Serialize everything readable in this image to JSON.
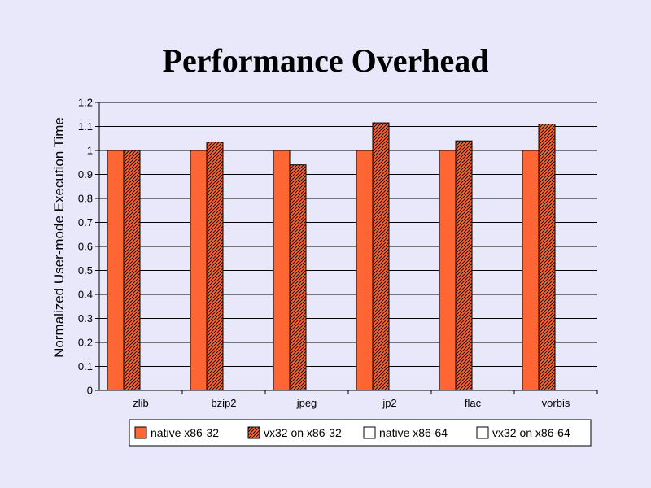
{
  "colors": {
    "background": "#e8e8fa",
    "native_fill": "#ff6633",
    "vx32_fill": "#ff6633",
    "hatch": "#000000",
    "empty_fill": "#ffffff",
    "gridline": "#000000"
  },
  "chart_data": {
    "type": "bar",
    "title": "Performance Overhead",
    "xlabel": "",
    "ylabel": "Normalized User-mode Execution Time",
    "ylim": [
      0,
      1.2
    ],
    "ytick_step": 0.1,
    "yticks": [
      "0",
      "0.1",
      "0.2",
      "0.3",
      "0.4",
      "0.5",
      "0.6",
      "0.7",
      "0.8",
      "0.9",
      "1",
      "1.1",
      "1.2"
    ],
    "grid": true,
    "legend_position": "bottom",
    "categories": [
      "zlib",
      "bzip2",
      "jpeg",
      "jp2",
      "flac",
      "vorbis"
    ],
    "series": [
      {
        "name": "native x86-32",
        "style": "solid",
        "values": [
          1.0,
          1.0,
          1.0,
          1.0,
          1.0,
          1.0
        ]
      },
      {
        "name": "vx32 on x86-32",
        "style": "hatched",
        "values": [
          1.0,
          1.035,
          0.94,
          1.115,
          1.04,
          1.11
        ]
      },
      {
        "name": "native x86-64",
        "style": "empty",
        "values": [
          null,
          null,
          null,
          null,
          null,
          null
        ]
      },
      {
        "name": "vx32 on x86-64",
        "style": "empty",
        "values": [
          null,
          null,
          null,
          null,
          null,
          null
        ]
      }
    ]
  }
}
